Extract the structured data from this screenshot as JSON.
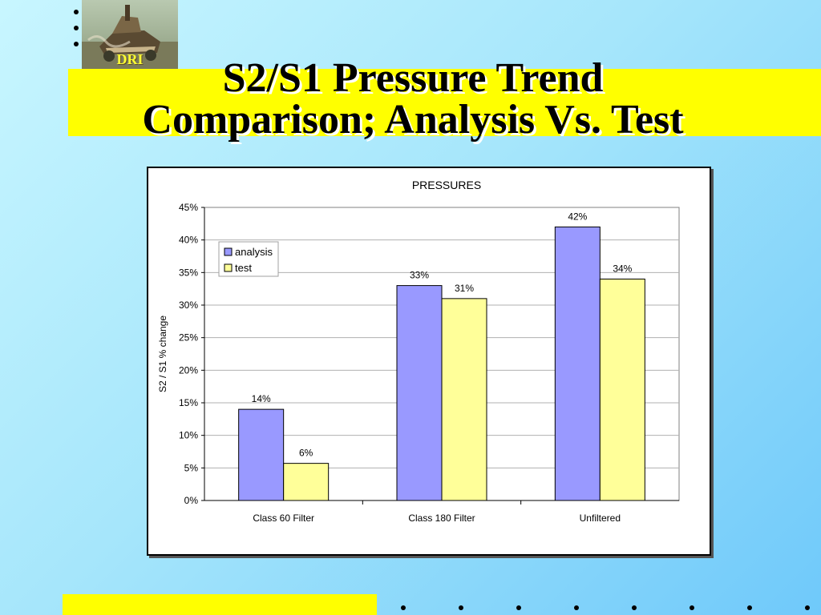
{
  "slide": {
    "title_line1": "S2/S1 Pressure Trend",
    "title_line2": "Comparison; Analysis Vs. Test",
    "logo_text": "DRI"
  },
  "colors": {
    "background_light": "#c8f6ff",
    "background_dark": "#6fc9fa",
    "band": "#ffff00",
    "analysis": "#9999ff",
    "test": "#ffff99"
  },
  "chart_data": {
    "type": "bar",
    "title": "PRESSURES",
    "xlabel": "",
    "ylabel": "S2 / S1 % change",
    "categories": [
      "Class 60 Filter",
      "Class 180 Filter",
      "Unfiltered"
    ],
    "series": [
      {
        "name": "analysis",
        "values": [
          0.14,
          0.33,
          0.42
        ],
        "labels": [
          "14%",
          "33%",
          "42%"
        ],
        "color": "#9999ff"
      },
      {
        "name": "test",
        "values": [
          0.057,
          0.31,
          0.34
        ],
        "labels": [
          "6%",
          "31%",
          "34%"
        ],
        "color": "#ffff99"
      }
    ],
    "ylim": [
      0,
      0.45
    ],
    "yticks": [
      "0%",
      "5%",
      "10%",
      "15%",
      "20%",
      "25%",
      "30%",
      "35%",
      "40%",
      "45%"
    ],
    "grid": true,
    "legend_position": "top-left"
  }
}
